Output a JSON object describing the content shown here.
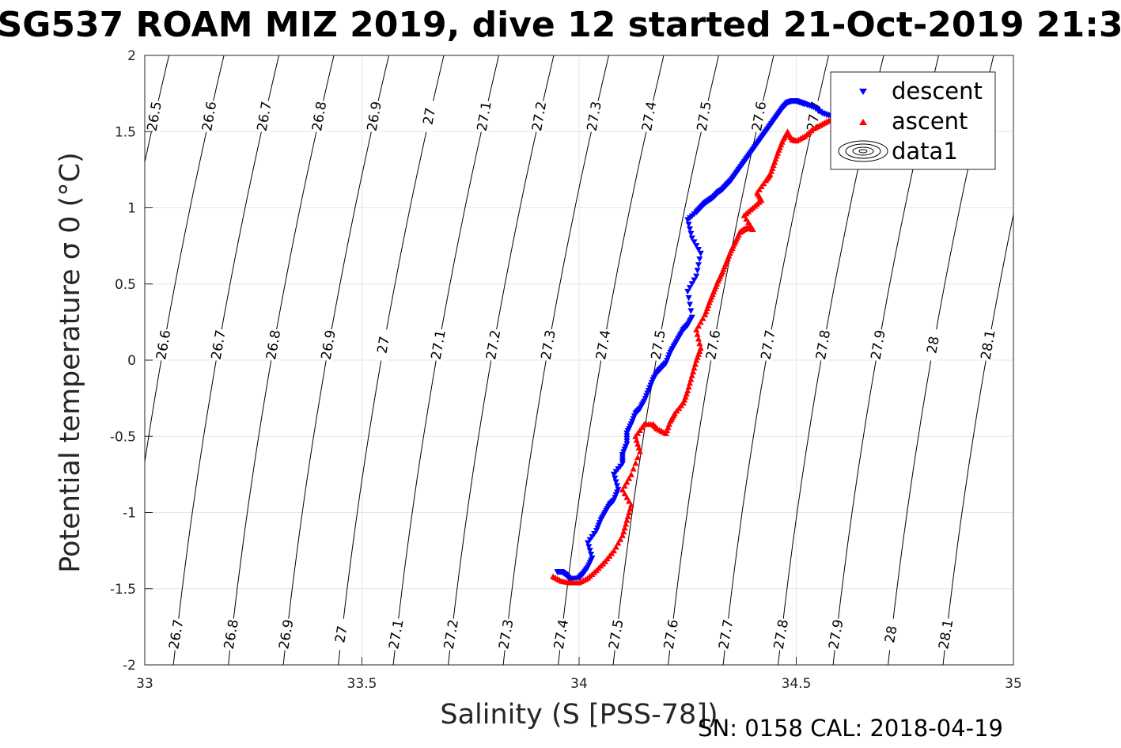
{
  "chart_data": {
    "type": "scatter",
    "title": "SG537 ROAM MIZ 2019, dive 12 started 21-Oct-2019 21:3",
    "xlabel": "Salinity (S [PSS-78])",
    "ylabel": "Potential temperature σ 0 (°C)",
    "footer": "SN: 0158  CAL: 2018-04-19",
    "xlim": [
      33,
      35
    ],
    "ylim": [
      -2,
      2
    ],
    "x_ticks": [
      "33",
      "33.5",
      "34",
      "34.5",
      "35"
    ],
    "y_ticks": [
      "-2",
      "-1.5",
      "-1",
      "-0.5",
      "0",
      "0.5",
      "1",
      "1.5",
      "2"
    ],
    "grid": true,
    "legend": {
      "placement": "top-right",
      "entries": [
        "descent",
        "ascent",
        "data1"
      ]
    },
    "colors": {
      "descent": "#0000ff",
      "ascent": "#ff0000",
      "contour": "#000000"
    },
    "isopycnals": {
      "levels": [
        26.5,
        26.6,
        26.7,
        26.8,
        26.9,
        27,
        27.1,
        27.2,
        27.3,
        27.4,
        27.5,
        27.6,
        27.7,
        27.8,
        27.9,
        28,
        28.1
      ],
      "labels": [
        "26.5",
        "26.6",
        "26.7",
        "26.8",
        "26.9",
        "27",
        "27.1",
        "27.2",
        "27.3",
        "27.4",
        "27.5",
        "27.6",
        "27.7",
        "27.8",
        "27.9",
        "28",
        "28.1"
      ]
    },
    "series": [
      {
        "name": "descent",
        "marker": "triangle-down",
        "x": [
          33.95,
          33.96,
          33.97,
          33.98,
          34.0,
          34.01,
          34.02,
          34.03,
          34.02,
          34.04,
          34.05,
          34.06,
          34.07,
          34.08,
          34.09,
          34.08,
          34.1,
          34.1,
          34.11,
          34.11,
          34.12,
          34.13,
          34.14,
          34.15,
          34.16,
          34.17,
          34.18,
          34.19,
          34.2,
          34.21,
          34.22,
          34.23,
          34.24,
          34.25,
          34.26,
          34.25,
          34.27,
          34.28,
          34.26,
          34.25,
          34.27,
          34.28,
          34.29,
          34.3,
          34.31,
          34.32,
          34.33,
          34.34,
          34.35,
          34.36,
          34.37,
          34.38,
          34.39,
          34.4,
          34.41,
          34.42,
          34.43,
          34.44,
          34.45,
          34.46,
          34.47,
          34.48,
          34.49,
          34.5,
          34.51,
          34.52,
          34.54,
          34.56,
          34.58,
          34.6
        ],
        "y": [
          -1.39,
          -1.39,
          -1.41,
          -1.44,
          -1.43,
          -1.4,
          -1.36,
          -1.3,
          -1.2,
          -1.12,
          -1.05,
          -1.0,
          -0.95,
          -0.92,
          -0.85,
          -0.75,
          -0.68,
          -0.62,
          -0.55,
          -0.48,
          -0.42,
          -0.35,
          -0.32,
          -0.27,
          -0.2,
          -0.13,
          -0.08,
          -0.05,
          -0.02,
          0.05,
          0.1,
          0.15,
          0.2,
          0.23,
          0.28,
          0.45,
          0.55,
          0.7,
          0.8,
          0.92,
          0.97,
          1.0,
          1.03,
          1.05,
          1.07,
          1.1,
          1.12,
          1.15,
          1.18,
          1.22,
          1.26,
          1.3,
          1.34,
          1.38,
          1.42,
          1.46,
          1.5,
          1.54,
          1.58,
          1.62,
          1.66,
          1.69,
          1.7,
          1.7,
          1.69,
          1.68,
          1.66,
          1.62,
          1.6,
          1.6
        ]
      },
      {
        "name": "ascent",
        "marker": "triangle-up",
        "x": [
          33.94,
          33.96,
          33.98,
          34.0,
          34.02,
          34.04,
          34.06,
          34.08,
          34.1,
          34.11,
          34.12,
          34.1,
          34.12,
          34.14,
          34.13,
          34.15,
          34.17,
          34.18,
          34.2,
          34.21,
          34.22,
          34.24,
          34.25,
          34.26,
          34.27,
          34.28,
          34.27,
          34.29,
          34.3,
          34.31,
          34.32,
          34.33,
          34.34,
          34.35,
          34.36,
          34.37,
          34.38,
          34.39,
          34.4,
          34.38,
          34.4,
          34.42,
          34.41,
          34.43,
          34.44,
          34.45,
          34.46,
          34.47,
          34.48,
          34.49,
          34.5,
          34.52,
          34.54,
          34.56,
          34.58,
          34.6
        ],
        "y": [
          -1.42,
          -1.45,
          -1.46,
          -1.46,
          -1.43,
          -1.38,
          -1.32,
          -1.25,
          -1.15,
          -1.05,
          -0.95,
          -0.85,
          -0.75,
          -0.6,
          -0.5,
          -0.42,
          -0.42,
          -0.45,
          -0.48,
          -0.4,
          -0.35,
          -0.28,
          -0.2,
          -0.1,
          0.0,
          0.08,
          0.2,
          0.3,
          0.38,
          0.45,
          0.52,
          0.58,
          0.65,
          0.72,
          0.78,
          0.84,
          0.86,
          0.87,
          0.86,
          0.95,
          1.0,
          1.05,
          1.1,
          1.18,
          1.22,
          1.3,
          1.38,
          1.45,
          1.5,
          1.45,
          1.44,
          1.47,
          1.52,
          1.55,
          1.58,
          1.62
        ]
      }
    ]
  }
}
